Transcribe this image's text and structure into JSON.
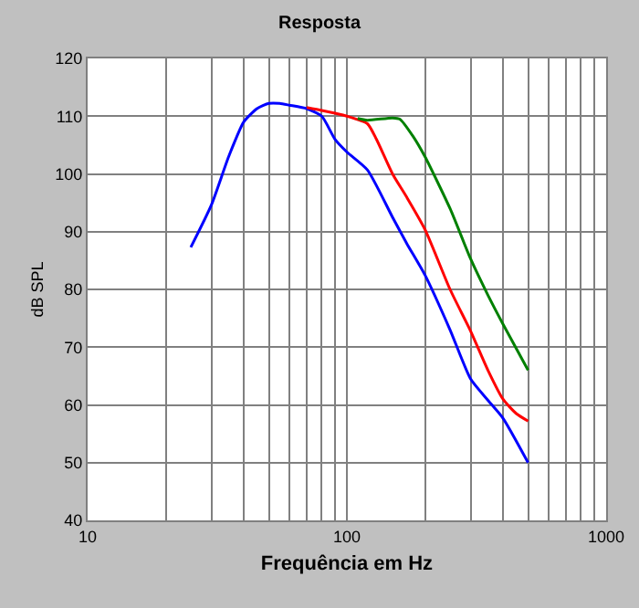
{
  "chart_data": {
    "type": "line",
    "title": "Resposta",
    "xlabel": "Frequência em Hz",
    "ylabel": "dB SPL",
    "log": "x",
    "grid": true,
    "marker": "none",
    "line_style": "solid",
    "xlim": [
      10,
      1000
    ],
    "xticks": [
      10,
      {
        "value": 20,
        "label": null
      },
      {
        "value": 30,
        "label": null
      },
      {
        "value": 40,
        "label": null
      },
      {
        "value": 50,
        "label": null
      },
      {
        "value": 60,
        "label": null
      },
      {
        "value": 70,
        "label": null
      },
      {
        "value": 80,
        "label": null
      },
      {
        "value": 90,
        "label": null
      },
      100,
      {
        "value": 200,
        "label": null
      },
      {
        "value": 300,
        "label": null
      },
      {
        "value": 400,
        "label": null
      },
      {
        "value": 500,
        "label": null
      },
      {
        "value": 600,
        "label": null
      },
      {
        "value": 700,
        "label": null
      },
      {
        "value": 800,
        "label": null
      },
      {
        "value": 900,
        "label": null
      },
      1000
    ],
    "ylim": [
      40,
      120
    ],
    "yticks": [
      40,
      50,
      60,
      70,
      80,
      90,
      100,
      110,
      120
    ],
    "series": [
      {
        "color": "#0000ff",
        "x": [
          25,
          30,
          35,
          40,
          45,
          50,
          55,
          60,
          70,
          80,
          90,
          100,
          120,
          150,
          170,
          200,
          250,
          300,
          350,
          400,
          500
        ],
        "values": [
          87.3,
          94.6,
          103,
          109,
          111.3,
          112.2,
          112.2,
          111.9,
          111.3,
          110,
          106,
          103.8,
          100.7,
          92.5,
          88,
          82.5,
          73,
          64.5,
          60.8,
          57.7,
          50
        ]
      },
      {
        "color": "#ff0000",
        "x": [
          70,
          80,
          90,
          100,
          120,
          130,
          150,
          170,
          200,
          250,
          300,
          350,
          400,
          450,
          500
        ],
        "values": [
          111.5,
          111,
          110.5,
          110,
          108.7,
          106,
          100,
          96,
          90.4,
          80,
          72.8,
          66,
          61,
          58.5,
          57.2
        ]
      },
      {
        "color": "#008000",
        "x": [
          110,
          120,
          150,
          160,
          180,
          200,
          250,
          300,
          350,
          400,
          500
        ],
        "values": [
          109.6,
          109.3,
          109.7,
          109.5,
          106.5,
          103,
          94,
          85.3,
          79,
          74,
          66
        ]
      }
    ]
  }
}
